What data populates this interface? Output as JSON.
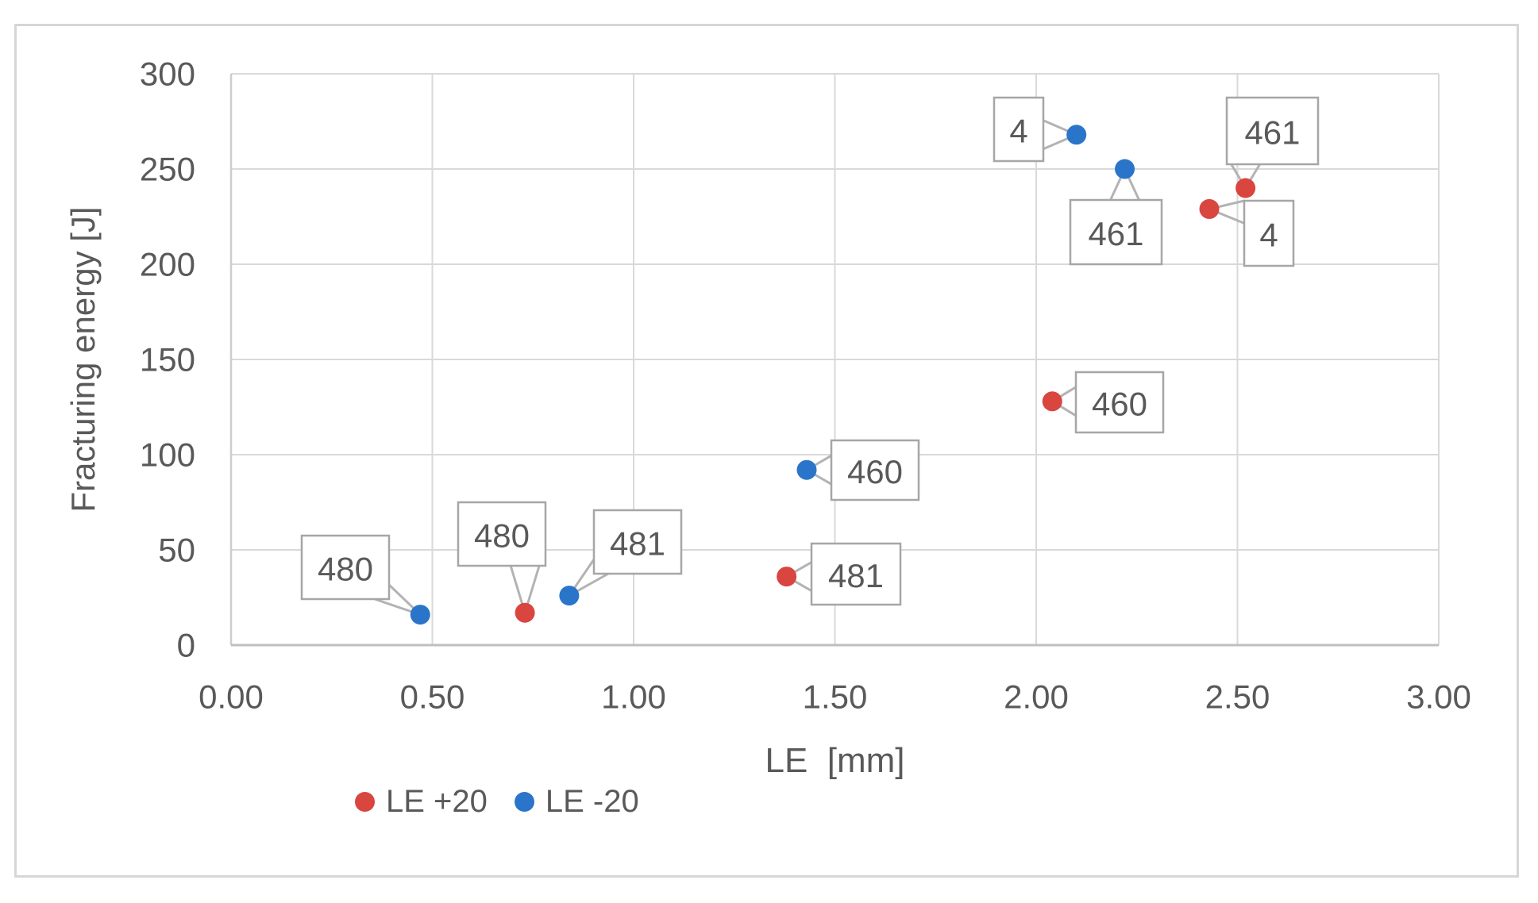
{
  "chart_data": {
    "type": "scatter",
    "title": "",
    "xlabel": "LE  [mm]",
    "ylabel": "Fracturing energy [J]",
    "xlim": [
      0,
      3
    ],
    "ylim": [
      0,
      300
    ],
    "xticks": [
      "0.00",
      "0.50",
      "1.00",
      "1.50",
      "2.00",
      "2.50",
      "3.00"
    ],
    "yticks": [
      "0",
      "50",
      "100",
      "150",
      "200",
      "250",
      "300"
    ],
    "grid": true,
    "legend_position": "bottom-left",
    "colors": {
      "text": "#595959",
      "gridline": "#d9d9d9",
      "axis_line": "#bfbfbf",
      "callout_border": "#a6a6a6",
      "leader_line": "#b3b3b3",
      "series_red": "#d9453f",
      "series_blue": "#2a75c9"
    },
    "series": [
      {
        "name": "LE +20",
        "color": "#d9453f",
        "points": [
          {
            "x": 0.73,
            "y": 17,
            "label": "480"
          },
          {
            "x": 1.38,
            "y": 36,
            "label": "481"
          },
          {
            "x": 2.04,
            "y": 128,
            "label": "460"
          },
          {
            "x": 2.43,
            "y": 229,
            "label": "4"
          },
          {
            "x": 2.52,
            "y": 240,
            "label": "461"
          }
        ]
      },
      {
        "name": "LE -20",
        "color": "#2a75c9",
        "points": [
          {
            "x": 0.47,
            "y": 16,
            "label": "480"
          },
          {
            "x": 0.84,
            "y": 26,
            "label": "481"
          },
          {
            "x": 1.43,
            "y": 92,
            "label": "460"
          },
          {
            "x": 2.1,
            "y": 268,
            "label": "4"
          },
          {
            "x": 2.22,
            "y": 250,
            "label": "461"
          }
        ]
      }
    ]
  }
}
